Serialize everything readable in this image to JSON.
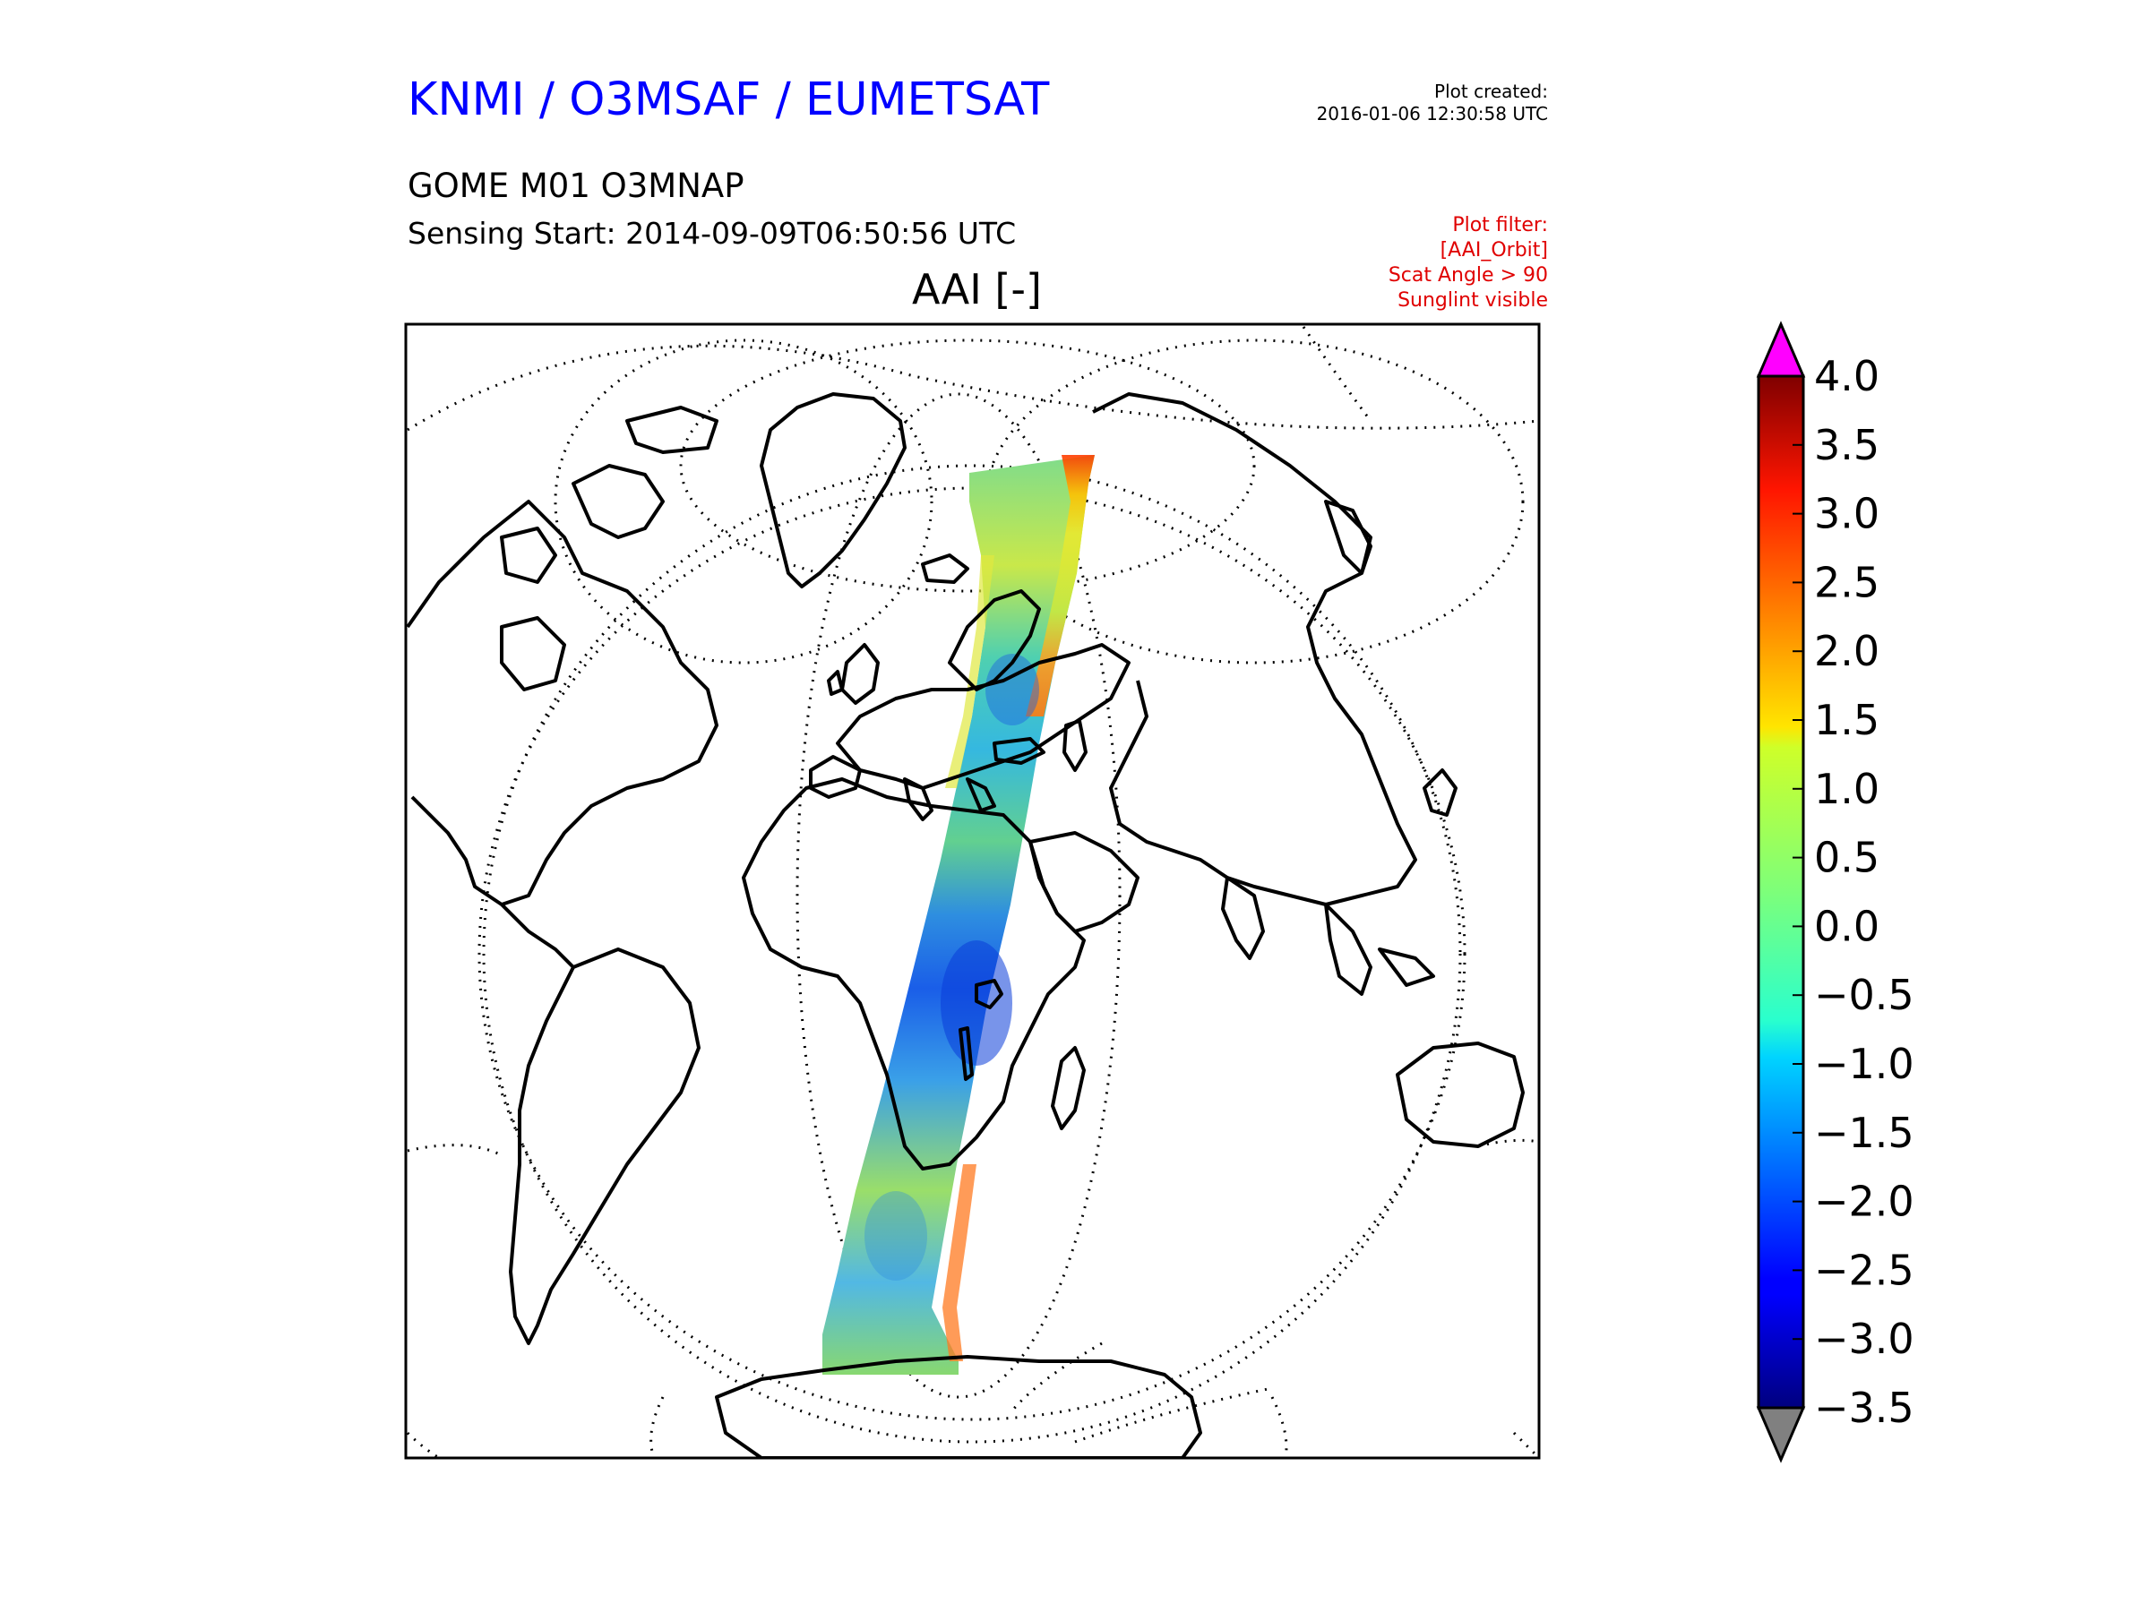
{
  "header": {
    "org_title": "KNMI / O3MSAF / EUMETSAT",
    "product": "GOME M01 O3MNAP",
    "sensing_start": "Sensing Start: 2014-09-09T06:50:56 UTC",
    "variable": "AAI [-]",
    "plot_created_label": "Plot created:",
    "plot_created_value": "2016-01-06 12:30:58 UTC",
    "filter_lines": [
      "Plot filter:",
      "[AAI_Orbit]",
      "Scat Angle > 90",
      "Sunglint visible"
    ]
  },
  "colorbar": {
    "min": -3.5,
    "max": 4.0,
    "ticks": [
      "4.0",
      "3.5",
      "3.0",
      "2.5",
      "2.0",
      "1.5",
      "1.0",
      "0.5",
      "0.0",
      "−0.5",
      "−1.0",
      "−1.5",
      "−2.0",
      "−2.5",
      "−3.0",
      "−3.5"
    ],
    "over_color": "#ff00ff",
    "under_color": "#808080",
    "colormap": "jet"
  },
  "map": {
    "projection": "orthographic",
    "coastline_color": "#000000",
    "graticule_style": "dotted",
    "swath_colormap": "jet"
  }
}
